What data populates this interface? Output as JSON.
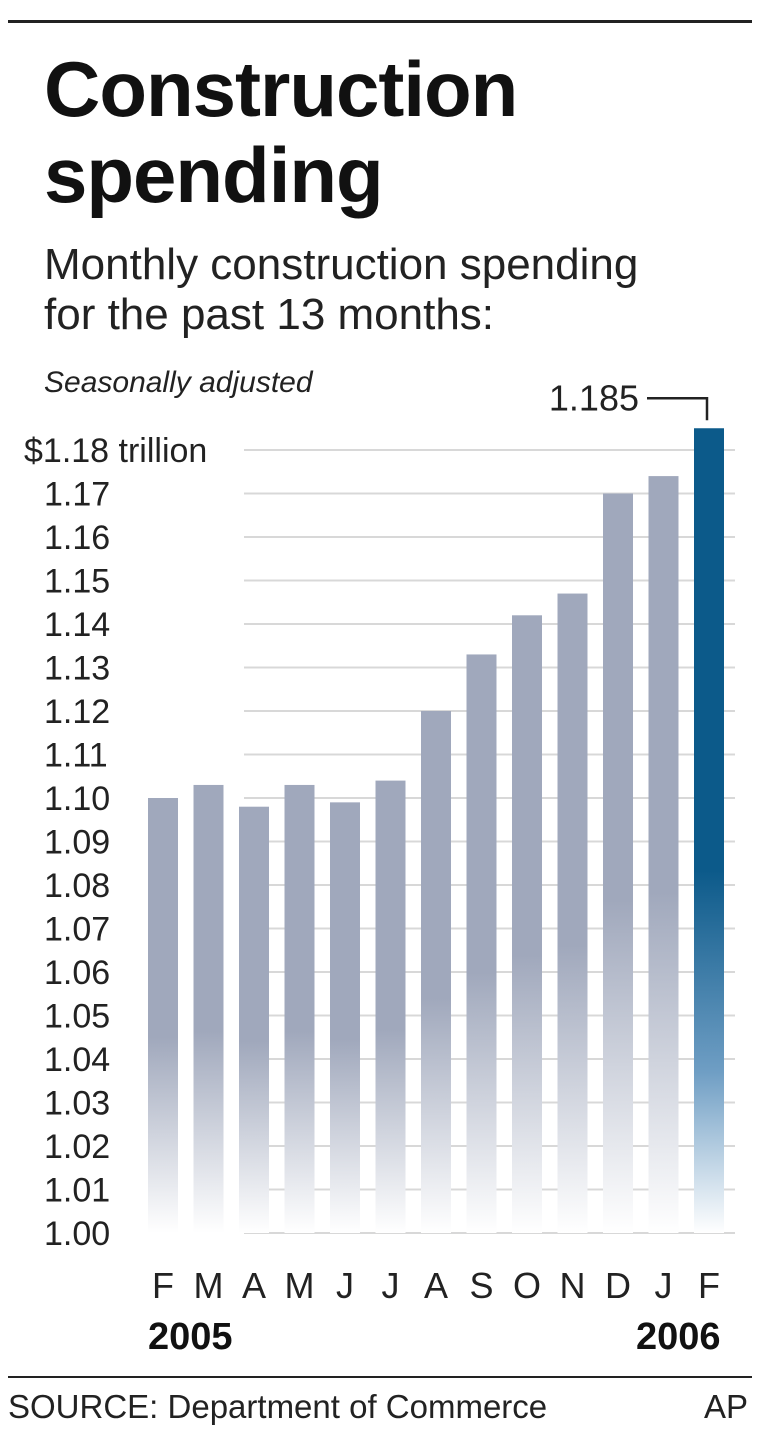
{
  "header": {
    "title_line1": "Construction",
    "title_line2": "spending",
    "subtitle_line1": "Monthly construction spending",
    "subtitle_line2": "for the past 13 months:",
    "note": "Seasonally adjusted"
  },
  "chart_data": {
    "type": "bar",
    "title": "Construction spending",
    "subtitle": "Monthly construction spending for the past 13 months:",
    "categories": [
      "F",
      "M",
      "A",
      "M",
      "J",
      "J",
      "A",
      "S",
      "O",
      "N",
      "D",
      "J",
      "F"
    ],
    "values": [
      1.1,
      1.103,
      1.098,
      1.103,
      1.099,
      1.104,
      1.12,
      1.133,
      1.142,
      1.147,
      1.17,
      1.174,
      1.185
    ],
    "ylim": [
      1.0,
      1.185
    ],
    "yticks": [
      1.0,
      1.01,
      1.02,
      1.03,
      1.04,
      1.05,
      1.06,
      1.07,
      1.08,
      1.09,
      1.1,
      1.11,
      1.12,
      1.13,
      1.14,
      1.15,
      1.16,
      1.17,
      1.18
    ],
    "ytick_labels": [
      "1.00",
      "1.01",
      "1.02",
      "1.03",
      "1.04",
      "1.05",
      "1.06",
      "1.07",
      "1.08",
      "1.09",
      "1.10",
      "1.11",
      "1.12",
      "1.13",
      "1.14",
      "1.15",
      "1.16",
      "1.17",
      "$1.18 trillion"
    ],
    "annotation": {
      "text": "1.185",
      "category_index": 12
    },
    "grid": true,
    "colors": {
      "bar": "#a0a8bc",
      "highlight": "#0c5a8a",
      "grid": "#d8d8d8"
    }
  },
  "footer": {
    "year_left": "2005",
    "year_right": "2006",
    "source": "SOURCE: Department of Commerce",
    "credit": "AP"
  }
}
